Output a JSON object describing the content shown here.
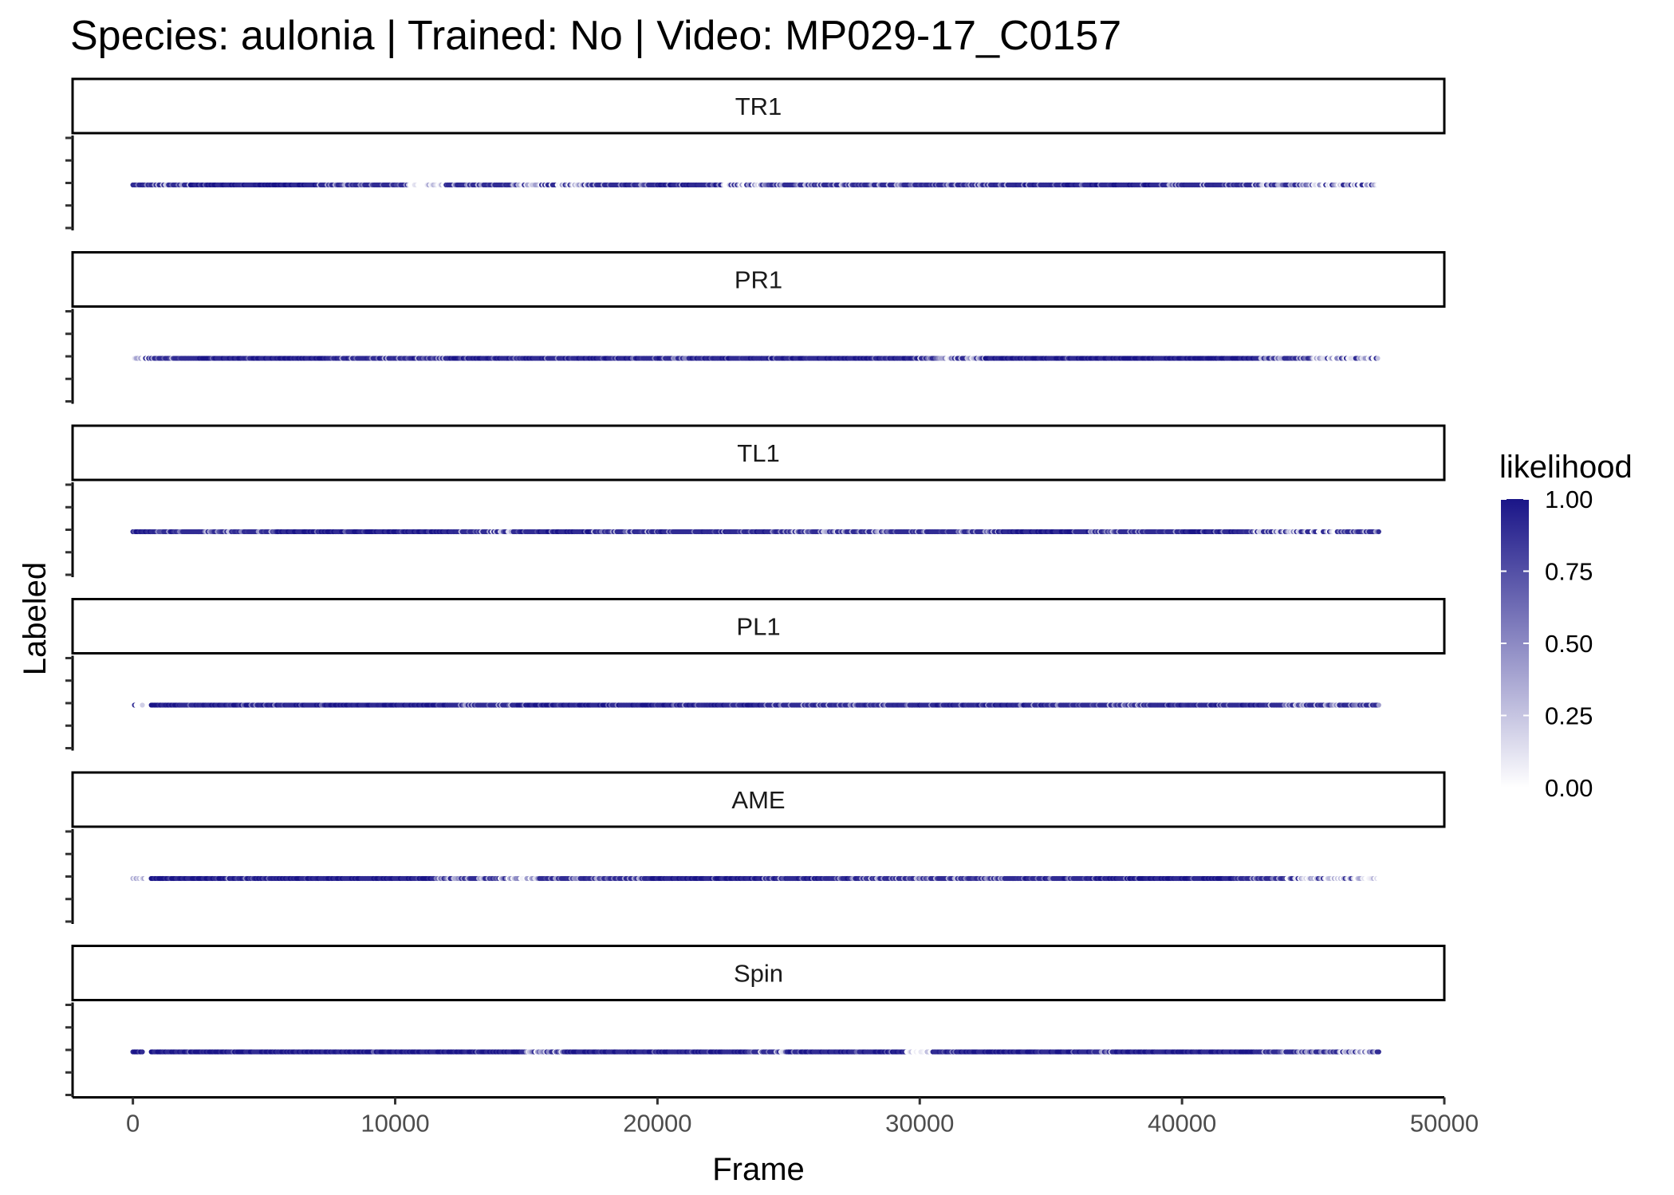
{
  "chart_data": {
    "type": "scatter",
    "title": "Species: aulonia | Trained: No | Video: MP029-17_C0157",
    "xlabel": "Frame",
    "ylabel": "Labeled",
    "xlim": [
      -2300,
      50000
    ],
    "x_ticks": [
      0,
      10000,
      20000,
      30000,
      40000,
      50000
    ],
    "x_tick_labels": [
      "0",
      "10000",
      "20000",
      "30000",
      "40000",
      "50000"
    ],
    "grid": false,
    "colorbar": {
      "title": "likelihood",
      "range": [
        0,
        1
      ],
      "low_color": "#ffffff",
      "high_color": "#1a1588",
      "ticks": [
        1.0,
        0.75,
        0.5,
        0.25,
        0.0
      ],
      "tick_labels": [
        "1.00",
        "0.75",
        "0.50",
        "0.25",
        "0.00"
      ],
      "placement": "right"
    },
    "facets": [
      {
        "label": "TR1",
        "x_start": 0,
        "x_end": 47500,
        "segments": [
          [
            0,
            400,
            0.85
          ],
          [
            400,
            2200,
            0.45
          ],
          [
            2200,
            7100,
            0.93
          ],
          [
            7100,
            10500,
            0.55
          ],
          [
            10500,
            12000,
            0.12
          ],
          [
            12000,
            14500,
            0.6
          ],
          [
            14500,
            17500,
            0.18
          ],
          [
            17500,
            20000,
            0.65
          ],
          [
            20000,
            22500,
            0.75
          ],
          [
            22500,
            24000,
            0.2
          ],
          [
            24000,
            27000,
            0.55
          ],
          [
            27000,
            30000,
            0.5
          ],
          [
            30000,
            34000,
            0.6
          ],
          [
            34000,
            36500,
            0.7
          ],
          [
            36500,
            39500,
            0.78
          ],
          [
            39500,
            42500,
            0.6
          ],
          [
            42500,
            45000,
            0.4
          ],
          [
            45000,
            47500,
            0.22
          ]
        ]
      },
      {
        "label": "PR1",
        "x_start": 0,
        "x_end": 47500,
        "segments": [
          [
            0,
            700,
            0.1
          ],
          [
            700,
            2000,
            0.55
          ],
          [
            2000,
            7300,
            0.9
          ],
          [
            7300,
            12000,
            0.65
          ],
          [
            12000,
            14500,
            0.88
          ],
          [
            14500,
            17000,
            0.75
          ],
          [
            17000,
            20000,
            0.8
          ],
          [
            20000,
            24000,
            0.75
          ],
          [
            24000,
            30000,
            0.82
          ],
          [
            30000,
            32500,
            0.35
          ],
          [
            32500,
            43000,
            0.95
          ],
          [
            43000,
            45000,
            0.55
          ],
          [
            45000,
            47500,
            0.18
          ]
        ]
      },
      {
        "label": "TL1",
        "x_start": 0,
        "x_end": 47500,
        "segments": [
          [
            0,
            700,
            0.95
          ],
          [
            700,
            2500,
            0.7
          ],
          [
            2500,
            5500,
            0.55
          ],
          [
            5500,
            12500,
            0.88
          ],
          [
            12500,
            14500,
            0.45
          ],
          [
            14500,
            17500,
            0.8
          ],
          [
            17500,
            20000,
            0.6
          ],
          [
            20000,
            25000,
            0.7
          ],
          [
            25000,
            29000,
            0.5
          ],
          [
            29000,
            33000,
            0.6
          ],
          [
            33000,
            36500,
            0.85
          ],
          [
            36500,
            40000,
            0.6
          ],
          [
            40000,
            42500,
            0.78
          ],
          [
            42500,
            44000,
            0.35
          ],
          [
            44000,
            46000,
            0.2
          ],
          [
            46000,
            47500,
            0.6
          ]
        ]
      },
      {
        "label": "PL1",
        "x_start": 0,
        "x_end": 47500,
        "segments": [
          [
            0,
            400,
            0.12
          ],
          [
            700,
            1800,
            0.95
          ],
          [
            1800,
            5500,
            0.75
          ],
          [
            5500,
            12000,
            0.92
          ],
          [
            12000,
            14500,
            0.6
          ],
          [
            14500,
            20000,
            0.85
          ],
          [
            20000,
            25000,
            0.72
          ],
          [
            25000,
            30000,
            0.62
          ],
          [
            30000,
            35000,
            0.75
          ],
          [
            35000,
            39000,
            0.6
          ],
          [
            39000,
            43000,
            0.75
          ],
          [
            43000,
            46000,
            0.5
          ],
          [
            46000,
            47500,
            0.6
          ]
        ]
      },
      {
        "label": "AME",
        "x_start": 0,
        "x_end": 47500,
        "segments": [
          [
            0,
            700,
            0.12
          ],
          [
            700,
            3500,
            0.92
          ],
          [
            3500,
            4500,
            0.7
          ],
          [
            4500,
            6000,
            0.85
          ],
          [
            6000,
            11500,
            0.9
          ],
          [
            11500,
            14000,
            0.5
          ],
          [
            14000,
            15500,
            0.2
          ],
          [
            15500,
            19500,
            0.6
          ],
          [
            19500,
            24000,
            0.85
          ],
          [
            24000,
            28000,
            0.68
          ],
          [
            28000,
            30000,
            0.55
          ],
          [
            30000,
            34000,
            0.55
          ],
          [
            34000,
            38000,
            0.75
          ],
          [
            38000,
            42000,
            0.88
          ],
          [
            42000,
            44000,
            0.55
          ],
          [
            44000,
            45500,
            0.2
          ],
          [
            45500,
            47500,
            0.1
          ]
        ]
      },
      {
        "label": "Spin",
        "x_start": 0,
        "x_end": 47500,
        "segments": [
          [
            0,
            400,
            0.95
          ],
          [
            700,
            15000,
            0.97
          ],
          [
            15000,
            16500,
            0.35
          ],
          [
            16500,
            19500,
            0.9
          ],
          [
            19500,
            23500,
            0.95
          ],
          [
            23500,
            25000,
            0.45
          ],
          [
            25000,
            29500,
            0.88
          ],
          [
            29500,
            30500,
            0.0
          ],
          [
            30500,
            32000,
            0.8
          ],
          [
            32000,
            36500,
            0.96
          ],
          [
            36500,
            37500,
            0.5
          ],
          [
            37500,
            43000,
            0.95
          ],
          [
            43000,
            46000,
            0.6
          ],
          [
            46000,
            47500,
            0.25
          ]
        ]
      }
    ]
  }
}
